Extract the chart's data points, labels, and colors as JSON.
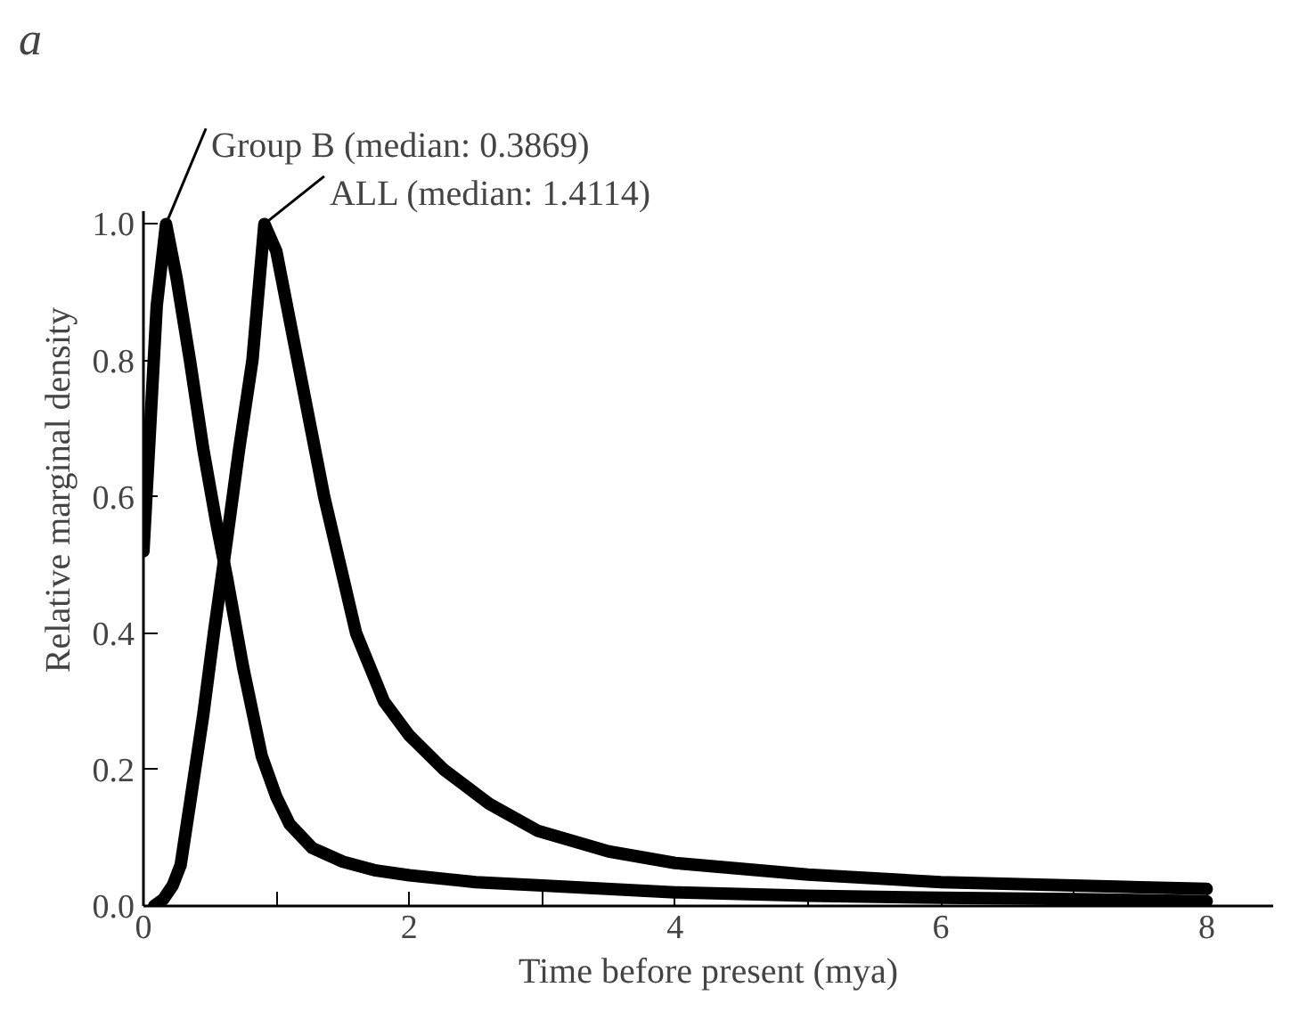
{
  "chart_data": {
    "type": "line",
    "xlabel": "Time before present (mya)",
    "ylabel": "Relative marginal density",
    "xlim": [
      0,
      8.5
    ],
    "ylim": [
      0,
      1.02
    ],
    "xticks": [
      0,
      {
        "value": 1,
        "label": null
      },
      2,
      {
        "value": 3,
        "label": null
      },
      4,
      {
        "value": 5,
        "label": null
      },
      6,
      {
        "value": 7,
        "label": null
      },
      8
    ],
    "yticks": [
      {
        "value": 0,
        "label": "0.0"
      },
      0.2,
      0.4,
      0.6,
      0.8,
      {
        "value": 1,
        "label": "1.0"
      }
    ],
    "grid": false,
    "marker": "none",
    "line_style": "solid",
    "annotations": [
      "a",
      {
        "text": "Group B (median: 0.3869)",
        "x": 0.17,
        "y": 1.0
      },
      {
        "text": "ALL (median: 1.4114)",
        "x": 0.91,
        "y": 1.0
      }
    ],
    "series": [
      {
        "color": "#000000",
        "x": [
          0,
          0.05,
          0.1,
          0.17,
          0.25,
          0.35,
          0.45,
          0.55,
          0.63,
          0.75,
          0.89,
          1.0,
          1.1,
          1.27,
          1.5,
          1.75,
          2,
          2.5,
          3,
          4,
          5,
          6,
          7,
          8
        ],
        "values": [
          0.52,
          0.7,
          0.88,
          1.0,
          0.92,
          0.8,
          0.67,
          0.56,
          0.48,
          0.35,
          0.22,
          0.16,
          0.12,
          0.085,
          0.065,
          0.052,
          0.045,
          0.035,
          0.03,
          0.02,
          0.015,
          0.012,
          0.01,
          0.007
        ]
      },
      {
        "color": "#000000",
        "x": [
          0.08,
          0.15,
          0.22,
          0.28,
          0.35,
          0.45,
          0.53,
          0.63,
          0.72,
          0.82,
          0.91,
          1.0,
          1.08,
          1.16,
          1.26,
          1.36,
          1.48,
          1.6,
          1.81,
          2.0,
          2.26,
          2.6,
          2.97,
          3.5,
          4,
          5,
          6,
          7,
          8
        ],
        "values": [
          0,
          0.01,
          0.03,
          0.06,
          0.15,
          0.28,
          0.4,
          0.54,
          0.67,
          0.8,
          1.0,
          0.96,
          0.88,
          0.8,
          0.7,
          0.6,
          0.5,
          0.4,
          0.3,
          0.25,
          0.2,
          0.15,
          0.11,
          0.08,
          0.063,
          0.046,
          0.035,
          0.03,
          0.025
        ]
      }
    ]
  }
}
